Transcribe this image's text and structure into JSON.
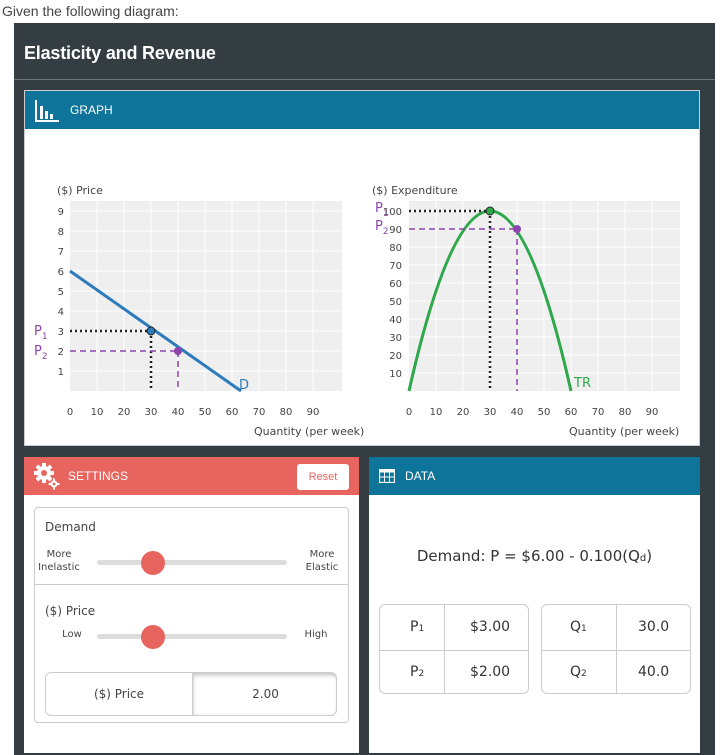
{
  "prompt": "Given the following diagram:",
  "app": {
    "title": "Elasticity and Revenue"
  },
  "graph": {
    "header": "GRAPH",
    "left": {
      "ylabel": "($) Price",
      "xlabel": "Quantity (per week)",
      "yticks": [
        "9",
        "8",
        "7",
        "6",
        "5",
        "4",
        "3",
        "2",
        "1"
      ],
      "xticks": [
        "0",
        "10",
        "20",
        "30",
        "40",
        "50",
        "60",
        "70",
        "80",
        "90"
      ],
      "p1": "P",
      "p1_sub": "1",
      "p2": "P",
      "p2_sub": "2",
      "curve_label": "D"
    },
    "right": {
      "ylabel": "($) Expenditure",
      "xlabel": "Quantity (per week)",
      "yticks": [
        "100",
        "90",
        "80",
        "70",
        "60",
        "50",
        "40",
        "30",
        "20",
        "10"
      ],
      "xticks": [
        "0",
        "10",
        "20",
        "30",
        "40",
        "50",
        "60",
        "70",
        "80",
        "90"
      ],
      "p1": "P",
      "p1_sub": "1",
      "p2": "P",
      "p2_sub": "2",
      "curve_label": "TR"
    }
  },
  "settings": {
    "header": "SETTINGS",
    "reset": "Reset",
    "demand_label": "Demand",
    "more_inelastic_1": "More",
    "more_inelastic_2": "Inelastic",
    "more_elastic_1": "More",
    "more_elastic_2": "Elastic",
    "price_label": "($) Price",
    "low": "Low",
    "high": "High",
    "toggle_label": "($) Price",
    "toggle_value": "2.00"
  },
  "data": {
    "header": "DATA",
    "equation": "Demand: P = $6.00 - 0.100(Q",
    "equation_sub": "d",
    "equation_end": ")",
    "p1": "P",
    "p1_sub": "1",
    "p1_value": "$3.00",
    "p2": "P",
    "p2_sub": "2",
    "p2_value": "$2.00",
    "q1": "Q",
    "q1_sub": "1",
    "q1_value": "30.0",
    "q2": "Q",
    "q2_sub": "2",
    "q2_value": "40.0"
  },
  "colors": {
    "teal": "#0f7499",
    "coral": "#e8645e",
    "demand_line": "#2b7bbd",
    "tr_curve": "#2da84a",
    "marker": "#8e44ad"
  }
}
